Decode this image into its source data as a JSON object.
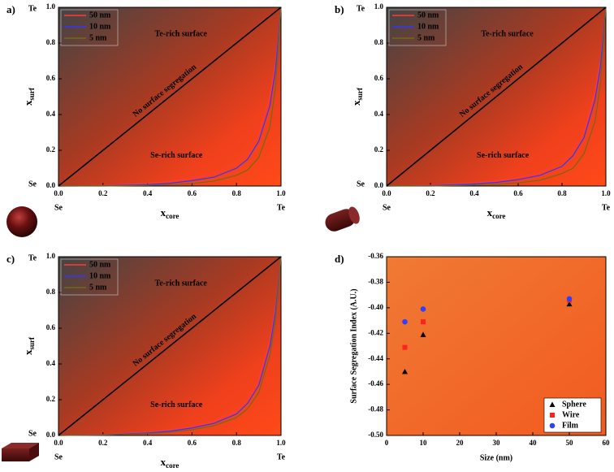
{
  "chart_data": [
    {
      "type": "line",
      "panel_label": "a)",
      "xlabel": "x",
      "xlabel_sub": "core",
      "ylabel": "x",
      "ylabel_sub": "surf",
      "x_end_labels": [
        "Se",
        "Te"
      ],
      "y_end_labels": [
        "Se",
        "Te"
      ],
      "annotations": [
        "Te-rich surface",
        "Se-rich surface"
      ],
      "x": [
        0,
        0.2,
        0.4,
        0.5,
        0.6,
        0.7,
        0.8,
        0.85,
        0.9,
        0.95,
        0.975,
        1
      ],
      "series": [
        {
          "name": "50 nm",
          "color": "#ff3b3b",
          "values": [
            0,
            0.003,
            0.015,
            0.025,
            0.045,
            0.07,
            0.13,
            0.19,
            0.29,
            0.5,
            0.68,
            1
          ]
        },
        {
          "name": "10 nm",
          "color": "#3535ff",
          "values": [
            0,
            0.001,
            0.008,
            0.015,
            0.03,
            0.05,
            0.1,
            0.15,
            0.25,
            0.45,
            0.65,
            1
          ]
        },
        {
          "name": "5 nm",
          "color": "#6f6a12",
          "values": [
            0,
            0,
            0.004,
            0.007,
            0.014,
            0.028,
            0.06,
            0.09,
            0.16,
            0.33,
            0.55,
            1
          ]
        },
        {
          "name": "No surface segregation",
          "color": "#000000",
          "legend": false,
          "values": [
            0,
            0.2,
            0.4,
            0.5,
            0.6,
            0.7,
            0.8,
            0.85,
            0.9,
            0.95,
            0.975,
            1
          ]
        }
      ],
      "xlim": [
        0,
        1
      ],
      "ylim": [
        0,
        1
      ],
      "xticks": [
        {
          "value": 0,
          "label": "0.0"
        },
        0.2,
        0.4,
        0.6,
        0.8,
        {
          "value": 1,
          "label": "1.0"
        }
      ],
      "yticks": [
        {
          "value": 0,
          "label": "0.0"
        },
        0.2,
        0.4,
        0.6,
        0.8,
        {
          "value": 1,
          "label": "1.0"
        }
      ]
    },
    {
      "type": "line",
      "panel_label": "b)",
      "xlabel": "x",
      "xlabel_sub": "core",
      "ylabel": "x",
      "ylabel_sub": "surf",
      "x_end_labels": [
        "Se",
        "Te"
      ],
      "y_end_labels": [
        "Se",
        "Te"
      ],
      "annotations": [
        "Te-rich surface",
        "Se-rich surface"
      ],
      "x": [
        0,
        0.2,
        0.4,
        0.5,
        0.6,
        0.7,
        0.8,
        0.85,
        0.9,
        0.95,
        0.975,
        1
      ],
      "series": [
        {
          "name": "50 nm",
          "color": "#ff3b3b",
          "values": [
            0,
            0.004,
            0.017,
            0.028,
            0.048,
            0.075,
            0.135,
            0.2,
            0.3,
            0.52,
            0.7,
            1
          ]
        },
        {
          "name": "10 nm",
          "color": "#3535ff",
          "values": [
            0,
            0.002,
            0.012,
            0.02,
            0.036,
            0.06,
            0.11,
            0.17,
            0.27,
            0.48,
            0.67,
            1
          ]
        },
        {
          "name": "5 nm",
          "color": "#6f6a12",
          "values": [
            0,
            0,
            0.005,
            0.009,
            0.018,
            0.032,
            0.07,
            0.1,
            0.18,
            0.36,
            0.57,
            1
          ]
        },
        {
          "name": "No surface segregation",
          "color": "#000000",
          "legend": false,
          "values": [
            0,
            0.2,
            0.4,
            0.5,
            0.6,
            0.7,
            0.8,
            0.85,
            0.9,
            0.95,
            0.975,
            1
          ]
        }
      ],
      "xlim": [
        0,
        1
      ],
      "ylim": [
        0,
        1
      ],
      "xticks": [
        {
          "value": 0,
          "label": "0.0"
        },
        0.2,
        0.4,
        0.6,
        0.8,
        {
          "value": 1,
          "label": "1.0"
        }
      ],
      "yticks": [
        {
          "value": 0,
          "label": "0.0"
        },
        0.2,
        0.4,
        0.6,
        0.8,
        {
          "value": 1,
          "label": "1.0"
        }
      ]
    },
    {
      "type": "line",
      "panel_label": "c)",
      "xlabel": "x",
      "xlabel_sub": "core",
      "ylabel": "x",
      "ylabel_sub": "surf",
      "x_end_labels": [
        "Se",
        "Te"
      ],
      "y_end_labels": [
        "Se",
        "Te"
      ],
      "annotations": [
        "Te-rich surface",
        "Se-rich surface"
      ],
      "x": [
        0,
        0.2,
        0.4,
        0.5,
        0.6,
        0.7,
        0.8,
        0.85,
        0.9,
        0.95,
        0.975,
        1
      ],
      "series": [
        {
          "name": "50 nm",
          "color": "#ff3b3b",
          "values": [
            0,
            0.004,
            0.018,
            0.03,
            0.05,
            0.08,
            0.14,
            0.2,
            0.31,
            0.53,
            0.71,
            1
          ]
        },
        {
          "name": "10 nm",
          "color": "#3535ff",
          "values": [
            0,
            0.003,
            0.014,
            0.024,
            0.042,
            0.068,
            0.12,
            0.18,
            0.28,
            0.5,
            0.69,
            1
          ]
        },
        {
          "name": "5 nm",
          "color": "#6f6a12",
          "values": [
            0,
            0.002,
            0.01,
            0.018,
            0.032,
            0.055,
            0.1,
            0.15,
            0.24,
            0.45,
            0.64,
            1
          ]
        },
        {
          "name": "No surface segregation",
          "color": "#000000",
          "legend": false,
          "values": [
            0,
            0.2,
            0.4,
            0.5,
            0.6,
            0.7,
            0.8,
            0.85,
            0.9,
            0.95,
            0.975,
            1
          ]
        }
      ],
      "xlim": [
        0,
        1
      ],
      "ylim": [
        0,
        1
      ],
      "xticks": [
        {
          "value": 0,
          "label": "0.0"
        },
        0.2,
        0.4,
        0.6,
        0.8,
        {
          "value": 1,
          "label": "1.0"
        }
      ],
      "yticks": [
        {
          "value": 0,
          "label": "0.0"
        },
        0.2,
        0.4,
        0.6,
        0.8,
        {
          "value": 1,
          "label": "1.0"
        }
      ]
    },
    {
      "type": "scatter",
      "panel_label": "d)",
      "xlabel": "Size (nm)",
      "ylabel": "Surface Segregation Index (A.U.)",
      "series": [
        {
          "name": "Sphere",
          "color": "#000000",
          "marker": "triangle",
          "x": [
            5,
            10,
            50
          ],
          "values": [
            -0.45,
            -0.421,
            -0.397
          ]
        },
        {
          "name": "Wire",
          "color": "#ff2020",
          "marker": "square",
          "x": [
            5,
            10,
            50
          ],
          "values": [
            -0.431,
            -0.411,
            -0.394
          ]
        },
        {
          "name": "Film",
          "color": "#3040ff",
          "marker": "circle",
          "x": [
            5,
            10,
            50
          ],
          "values": [
            -0.411,
            -0.401,
            -0.393
          ]
        }
      ],
      "xlim": [
        0,
        60
      ],
      "ylim": [
        -0.5,
        -0.36
      ],
      "xticks": [
        0,
        10,
        20,
        30,
        40,
        50,
        60
      ],
      "yticks": [
        {
          "value": -0.5,
          "label": "-0.50"
        },
        -0.48,
        -0.46,
        -0.44,
        -0.42,
        {
          "value": -0.4,
          "label": "-0.40"
        },
        -0.38,
        -0.36
      ],
      "legend": "lower right"
    }
  ]
}
